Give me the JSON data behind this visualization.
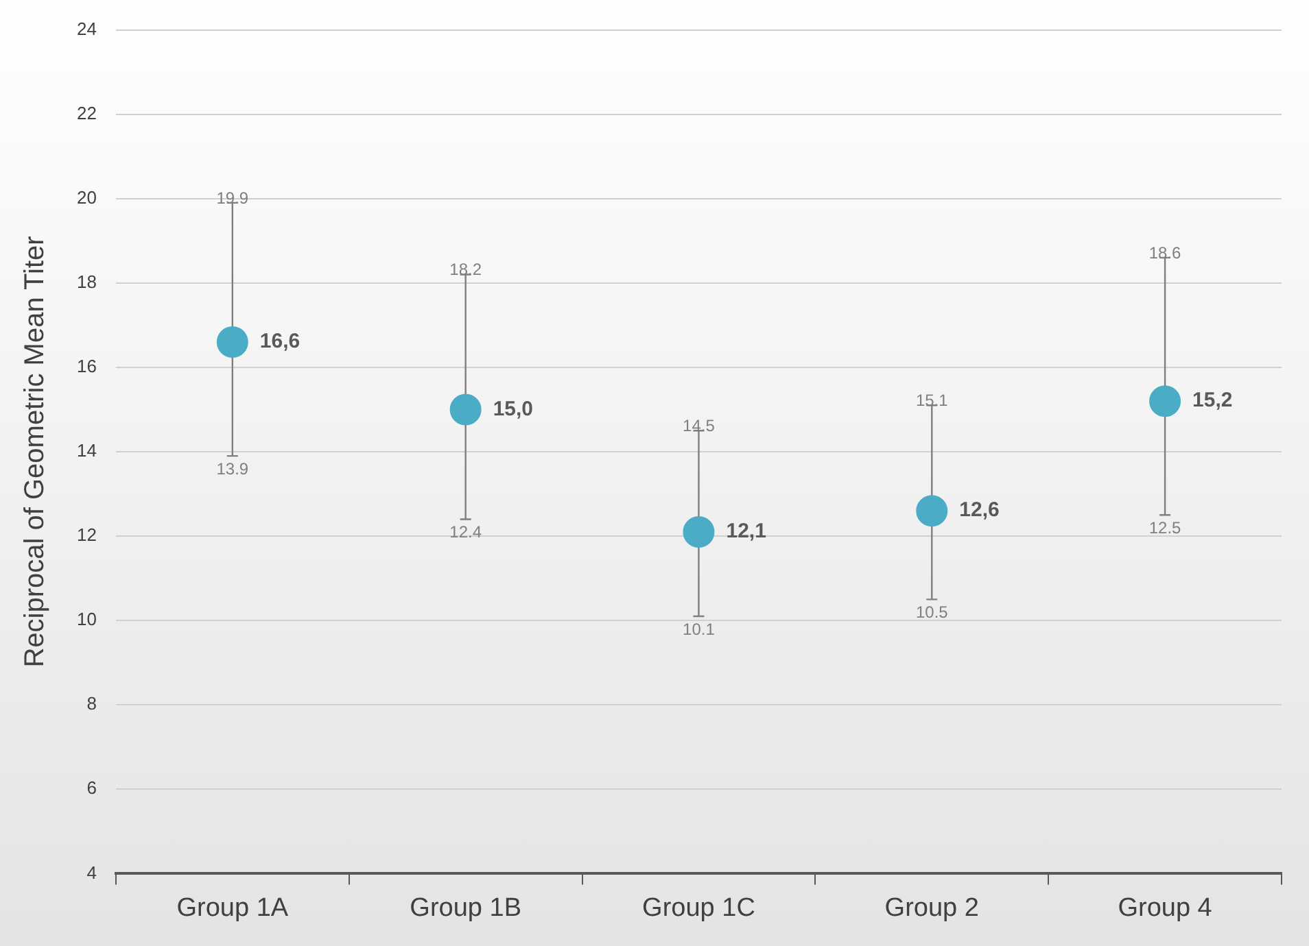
{
  "chart_data": {
    "type": "scatter",
    "ylabel": "Reciprocal of Geometric Mean Titer",
    "categories": [
      "Group 1A",
      "Group 1B",
      "Group 1C",
      "Group 2",
      "Group 4"
    ],
    "series": [
      {
        "color": "#4bacc6",
        "values": [
          16.6,
          15.0,
          12.1,
          12.6,
          15.2
        ],
        "errors": [
          [
            13.9,
            19.9
          ],
          [
            12.4,
            18.2
          ],
          [
            10.1,
            14.5
          ],
          [
            10.5,
            15.1
          ],
          [
            12.5,
            18.6
          ]
        ],
        "value_labels": [
          "16,6",
          "15,0",
          "12,1",
          "12,6",
          "15,2"
        ]
      }
    ],
    "annotations": [
      {
        "text": "19.9",
        "x": "Group 1A",
        "y": 19.9
      },
      {
        "text": "13.9",
        "x": "Group 1A",
        "y": 13.9
      },
      {
        "text": "18.2",
        "x": "Group 1B",
        "y": 18.2
      },
      {
        "text": "12.4",
        "x": "Group 1B",
        "y": 12.4
      },
      {
        "text": "14.5",
        "x": "Group 1C",
        "y": 14.5
      },
      {
        "text": "10.1",
        "x": "Group 1C",
        "y": 10.1
      },
      {
        "text": "15.1",
        "x": "Group 2",
        "y": 15.1
      },
      {
        "text": "10.5",
        "x": "Group 2",
        "y": 10.5
      },
      {
        "text": "18.6",
        "x": "Group 4",
        "y": 18.6
      },
      {
        "text": "12.5",
        "x": "Group 4",
        "y": 12.5
      }
    ],
    "ylim": [
      4,
      24
    ],
    "yticks": [
      4,
      6,
      8,
      10,
      12,
      14,
      16,
      18,
      20,
      22,
      24
    ],
    "grid": "y",
    "legend": false,
    "marker": "circle"
  }
}
